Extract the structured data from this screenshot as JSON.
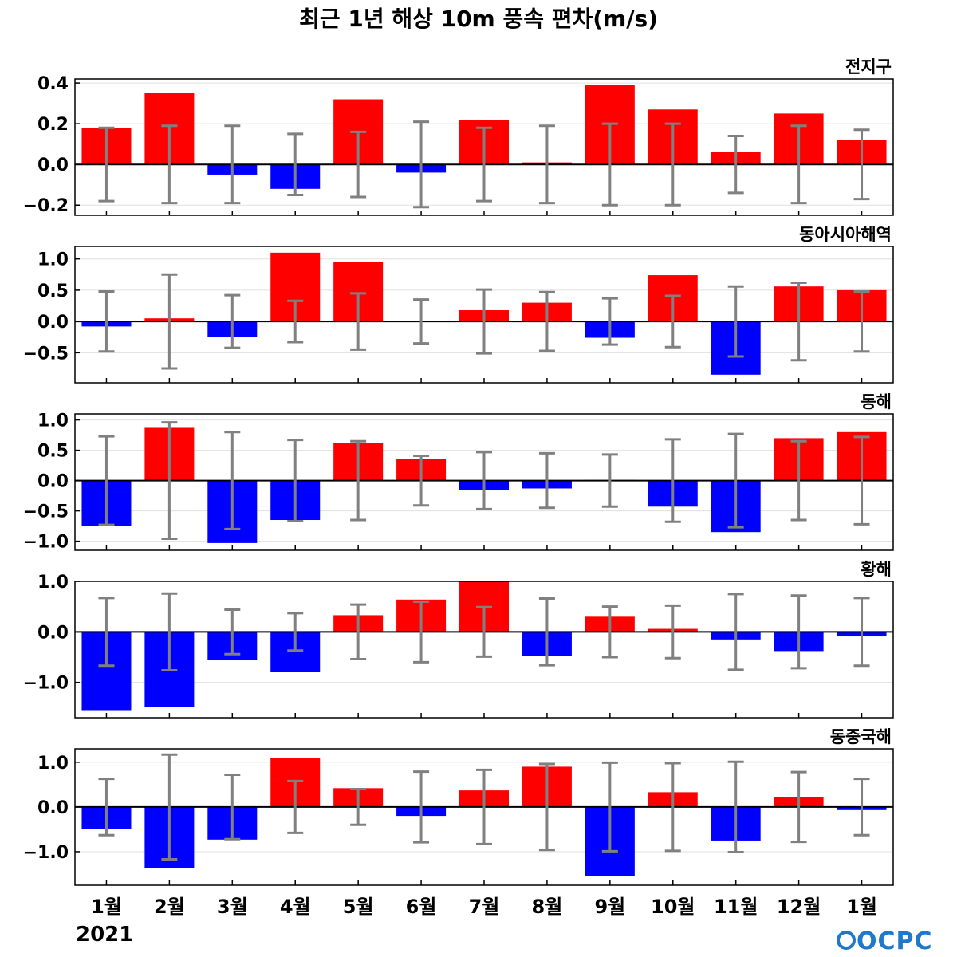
{
  "figure": {
    "title": "최근 1년 해상 10m 풍속 편차(m/s)",
    "year_label": "2021",
    "logo_text": "OCPC"
  },
  "colors": {
    "positive": "#ff0000",
    "negative": "#0000ff",
    "error_bar": "#808080",
    "zero_line": "#000000",
    "grid": "#e0e0e0",
    "logo": "#1f78c8"
  },
  "chart_data": [
    {
      "type": "bar",
      "title": "전지구",
      "categories": [
        "1월",
        "2월",
        "3월",
        "4월",
        "5월",
        "6월",
        "7월",
        "8월",
        "9월",
        "10월",
        "11월",
        "12월",
        "1월"
      ],
      "values": [
        0.18,
        0.35,
        -0.05,
        -0.12,
        0.32,
        -0.04,
        0.22,
        0.01,
        0.39,
        0.27,
        0.06,
        0.25,
        0.12
      ],
      "error": [
        0.18,
        0.19,
        0.19,
        0.15,
        0.16,
        0.21,
        0.18,
        0.19,
        0.2,
        0.2,
        0.14,
        0.19,
        0.17
      ],
      "ylim": [
        -0.25,
        0.42
      ],
      "yticks": [
        -0.2,
        0.0,
        0.2,
        0.4
      ],
      "ytick_labels": [
        "−0.2",
        "0.0",
        "0.2",
        "0.4"
      ],
      "grid": true
    },
    {
      "type": "bar",
      "title": "동아시아해역",
      "categories": [
        "1월",
        "2월",
        "3월",
        "4월",
        "5월",
        "6월",
        "7월",
        "8월",
        "9월",
        "10월",
        "11월",
        "12월",
        "1월"
      ],
      "values": [
        -0.08,
        0.05,
        -0.25,
        1.1,
        0.95,
        0.0,
        0.18,
        0.3,
        -0.26,
        0.74,
        -0.85,
        0.56,
        0.5
      ],
      "error": [
        0.48,
        0.75,
        0.42,
        0.33,
        0.45,
        0.35,
        0.51,
        0.47,
        0.37,
        0.41,
        0.56,
        0.62,
        0.48
      ],
      "ylim": [
        -0.98,
        1.2
      ],
      "yticks": [
        -0.5,
        0.0,
        0.5,
        1.0
      ],
      "ytick_labels": [
        "−0.5",
        "0.0",
        "0.5",
        "1.0"
      ],
      "grid": true
    },
    {
      "type": "bar",
      "title": "동해",
      "categories": [
        "1월",
        "2월",
        "3월",
        "4월",
        "5월",
        "6월",
        "7월",
        "8월",
        "9월",
        "10월",
        "11월",
        "12월",
        "1월"
      ],
      "values": [
        -0.75,
        0.87,
        -1.03,
        -0.65,
        0.62,
        0.35,
        -0.15,
        -0.13,
        0.01,
        -0.43,
        -0.85,
        0.7,
        0.8
      ],
      "error": [
        0.73,
        0.96,
        0.8,
        0.67,
        0.65,
        0.41,
        0.47,
        0.45,
        0.43,
        0.68,
        0.77,
        0.65,
        0.72
      ],
      "ylim": [
        -1.15,
        1.1
      ],
      "yticks": [
        -1.0,
        -0.5,
        0.0,
        0.5,
        1.0
      ],
      "ytick_labels": [
        "−1.0",
        "−0.5",
        "0.0",
        "0.5",
        "1.0"
      ],
      "grid": true
    },
    {
      "type": "bar",
      "title": "황해",
      "categories": [
        "1월",
        "2월",
        "3월",
        "4월",
        "5월",
        "6월",
        "7월",
        "8월",
        "9월",
        "10월",
        "11월",
        "12월",
        "1월"
      ],
      "values": [
        -1.55,
        -1.48,
        -0.55,
        -0.8,
        0.33,
        0.64,
        1.0,
        -0.47,
        0.3,
        0.06,
        -0.15,
        -0.38,
        -0.09
      ],
      "error": [
        0.67,
        0.76,
        0.44,
        0.37,
        0.54,
        0.6,
        0.49,
        0.66,
        0.5,
        0.52,
        0.75,
        0.72,
        0.67
      ],
      "ylim": [
        -1.7,
        1.0
      ],
      "yticks": [
        -1.0,
        0.0,
        1.0
      ],
      "ytick_labels": [
        "−1.0",
        "0.0",
        "1.0"
      ],
      "grid": true
    },
    {
      "type": "bar",
      "title": "동중국해",
      "categories": [
        "1월",
        "2월",
        "3월",
        "4월",
        "5월",
        "6월",
        "7월",
        "8월",
        "9월",
        "10월",
        "11월",
        "12월",
        "1월"
      ],
      "values": [
        -0.5,
        -1.37,
        -0.73,
        1.1,
        0.42,
        -0.2,
        0.37,
        0.9,
        -1.55,
        0.33,
        -0.75,
        0.22,
        -0.07
      ],
      "error": [
        0.63,
        1.17,
        0.72,
        0.58,
        0.4,
        0.79,
        0.83,
        0.96,
        0.99,
        0.98,
        1.01,
        0.78,
        0.63
      ],
      "ylim": [
        -1.75,
        1.3
      ],
      "yticks": [
        -1.0,
        0.0,
        1.0
      ],
      "ytick_labels": [
        "−1.0",
        "0.0",
        "1.0"
      ],
      "grid": true
    }
  ]
}
